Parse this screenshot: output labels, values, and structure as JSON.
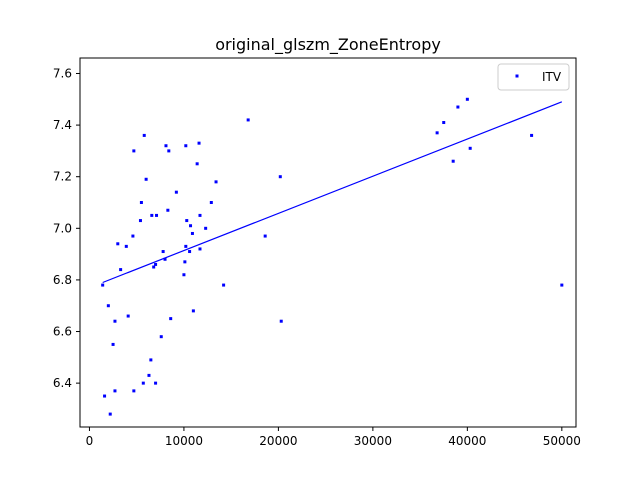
{
  "chart_data": {
    "type": "scatter",
    "title": "original_glszm_ZoneEntropy",
    "xlabel": "",
    "ylabel": "",
    "xlim": [
      -1000,
      51500
    ],
    "ylim": [
      6.23,
      7.66
    ],
    "xticks": [
      0,
      10000,
      20000,
      30000,
      40000,
      50000
    ],
    "xtick_labels": [
      "0",
      "10000",
      "20000",
      "30000",
      "40000",
      "50000"
    ],
    "yticks": [
      6.4,
      6.6,
      6.8,
      7.0,
      7.2,
      7.4,
      7.6
    ],
    "ytick_labels": [
      "6.4",
      "6.6",
      "6.8",
      "7.0",
      "7.2",
      "7.4",
      "7.6"
    ],
    "grid": false,
    "legend": {
      "placement": "top-right",
      "entries": [
        "ITV"
      ]
    },
    "colors": {
      "series": "#0000ff",
      "axes": "#000000",
      "background": "#ffffff"
    },
    "series": [
      {
        "name": "ITV",
        "points": [
          [
            1400,
            6.78
          ],
          [
            1600,
            6.35
          ],
          [
            2000,
            6.7
          ],
          [
            2200,
            6.28
          ],
          [
            2500,
            6.55
          ],
          [
            2700,
            6.64
          ],
          [
            2700,
            6.37
          ],
          [
            3000,
            6.94
          ],
          [
            3300,
            6.84
          ],
          [
            3900,
            6.93
          ],
          [
            4100,
            6.66
          ],
          [
            4700,
            6.37
          ],
          [
            4700,
            7.3
          ],
          [
            4600,
            6.97
          ],
          [
            5400,
            7.03
          ],
          [
            5500,
            7.1
          ],
          [
            5700,
            6.4
          ],
          [
            5800,
            7.36
          ],
          [
            6000,
            7.19
          ],
          [
            6300,
            6.43
          ],
          [
            6500,
            6.49
          ],
          [
            6600,
            7.05
          ],
          [
            6800,
            6.85
          ],
          [
            7000,
            6.86
          ],
          [
            7000,
            6.4
          ],
          [
            7100,
            7.05
          ],
          [
            7600,
            6.58
          ],
          [
            7800,
            6.91
          ],
          [
            8000,
            6.88
          ],
          [
            8100,
            7.32
          ],
          [
            8300,
            7.07
          ],
          [
            8400,
            7.3
          ],
          [
            8600,
            6.65
          ],
          [
            9200,
            7.14
          ],
          [
            10000,
            6.82
          ],
          [
            10100,
            6.87
          ],
          [
            10200,
            7.32
          ],
          [
            10200,
            6.93
          ],
          [
            10300,
            7.03
          ],
          [
            10600,
            6.91
          ],
          [
            10700,
            7.01
          ],
          [
            10900,
            6.98
          ],
          [
            11000,
            6.68
          ],
          [
            11400,
            7.25
          ],
          [
            11600,
            7.33
          ],
          [
            11700,
            6.92
          ],
          [
            11700,
            7.05
          ],
          [
            12300,
            7.0
          ],
          [
            12900,
            7.1
          ],
          [
            13400,
            7.18
          ],
          [
            14200,
            6.78
          ],
          [
            16800,
            7.42
          ],
          [
            18600,
            6.97
          ],
          [
            20200,
            7.2
          ],
          [
            20300,
            6.64
          ],
          [
            36800,
            7.37
          ],
          [
            37500,
            7.41
          ],
          [
            38500,
            7.26
          ],
          [
            39000,
            7.47
          ],
          [
            40000,
            7.5
          ],
          [
            40300,
            7.31
          ],
          [
            46800,
            7.36
          ],
          [
            50000,
            6.78
          ]
        ]
      }
    ],
    "trendline": {
      "x": [
        1400,
        50000
      ],
      "y": [
        6.79,
        7.49
      ]
    }
  }
}
